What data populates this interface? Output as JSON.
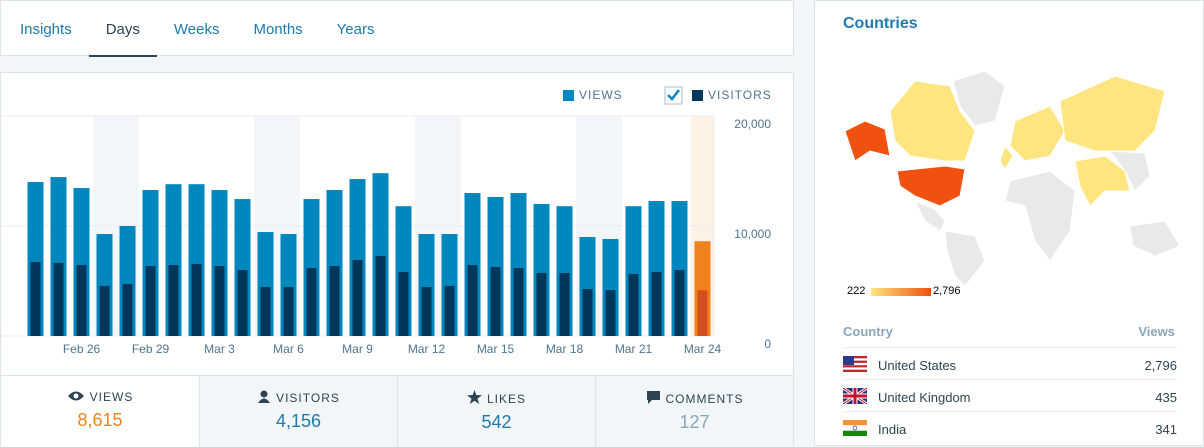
{
  "tabs": [
    "Insights",
    "Days",
    "Weeks",
    "Months",
    "Years"
  ],
  "active_tab": 1,
  "chart_data": {
    "type": "bar",
    "categories": [
      null,
      null,
      "Feb 26",
      null,
      null,
      "Feb 29",
      null,
      null,
      "Mar 3",
      null,
      null,
      "Mar 6",
      null,
      null,
      "Mar 9",
      null,
      null,
      "Mar 12",
      null,
      null,
      "Mar 15",
      null,
      null,
      "Mar 18",
      null,
      null,
      "Mar 21",
      null,
      null,
      "Mar 24"
    ],
    "series": [
      {
        "name": "VIEWS",
        "color": "#0087be",
        "values": [
          14000,
          14450,
          13450,
          9270,
          10000,
          13270,
          13800,
          13800,
          13270,
          12450,
          9450,
          9270,
          12450,
          13270,
          14270,
          14800,
          11800,
          9270,
          9270,
          13000,
          12640,
          13000,
          12000,
          11800,
          9000,
          8820,
          11800,
          12270,
          12270,
          8615
        ]
      },
      {
        "name": "VISITORS",
        "color": "#00375a",
        "values": [
          6730,
          6640,
          6450,
          4550,
          4730,
          6360,
          6450,
          6550,
          6360,
          6000,
          4450,
          4450,
          6180,
          6360,
          6910,
          7270,
          5820,
          4450,
          4550,
          6450,
          6270,
          6180,
          5730,
          5730,
          4270,
          4180,
          5640,
          5820,
          6000,
          4156
        ]
      }
    ],
    "highlight_colors": [
      "#f0821e",
      "#d54e21"
    ],
    "ylim": [
      0,
      20000
    ],
    "yticks": [
      {
        "value": 0,
        "label": "0"
      },
      {
        "value": 10000,
        "label": "10,000"
      },
      {
        "value": 20000,
        "label": "20,000"
      }
    ],
    "grid": true
  },
  "summary": [
    {
      "label": "VIEWS",
      "value": "8,615"
    },
    {
      "label": "VISITORS",
      "value": "4,156"
    },
    {
      "label": "LIKES",
      "value": "542"
    },
    {
      "label": "COMMENTS",
      "value": "127"
    }
  ],
  "countries": {
    "title": "Countries",
    "legend_min": "222",
    "legend_max": "2,796",
    "columns": [
      "Country",
      "Views"
    ],
    "rows": [
      [
        "United States",
        "2,796"
      ],
      [
        "United Kingdom",
        "435"
      ],
      [
        "India",
        "341"
      ]
    ]
  }
}
